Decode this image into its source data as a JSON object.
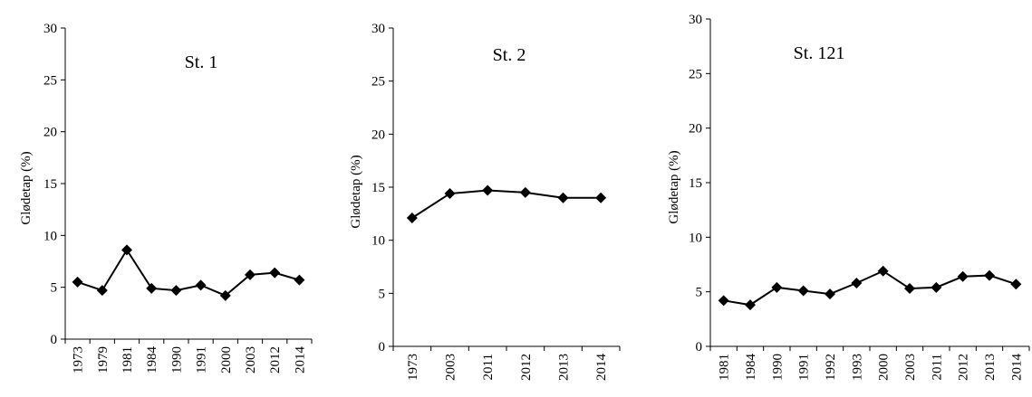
{
  "chart_data": [
    {
      "type": "line",
      "title": "St. 1",
      "xlabel": "",
      "ylabel": "Glødetap (%)",
      "ylim": [
        0,
        30
      ],
      "yticks": [
        0,
        5,
        10,
        15,
        20,
        25,
        30
      ],
      "grid": false,
      "categories": [
        "1973",
        "1979",
        "1981",
        "1984",
        "1990",
        "1991",
        "2000",
        "2003",
        "2012",
        "2014"
      ],
      "series": [
        {
          "values": [
            5.5,
            4.7,
            8.6,
            4.9,
            4.7,
            5.2,
            4.2,
            6.2,
            6.4,
            5.7
          ]
        }
      ]
    },
    {
      "type": "line",
      "title": "St. 2",
      "xlabel": "",
      "ylabel": "Glødetap (%)",
      "ylim": [
        0,
        30
      ],
      "yticks": [
        0,
        5,
        10,
        15,
        20,
        25,
        30
      ],
      "grid": false,
      "categories": [
        "1973",
        "2003",
        "2011",
        "2012",
        "2013",
        "2014"
      ],
      "series": [
        {
          "values": [
            12.1,
            14.4,
            14.7,
            14.5,
            14.0,
            14.0
          ]
        }
      ]
    },
    {
      "type": "line",
      "title": "St. 121",
      "xlabel": "",
      "ylabel": "Glødetap (%)",
      "ylim": [
        0,
        30
      ],
      "yticks": [
        0,
        5,
        10,
        15,
        20,
        25,
        30
      ],
      "grid": false,
      "categories": [
        "1981",
        "1984",
        "1990",
        "1991",
        "1992",
        "1993",
        "2000",
        "2003",
        "2011",
        "2012",
        "2013",
        "2014"
      ],
      "series": [
        {
          "values": [
            4.2,
            3.8,
            5.4,
            5.1,
            4.8,
            5.8,
            6.9,
            5.3,
            5.4,
            6.4,
            6.5,
            5.7
          ]
        }
      ]
    }
  ]
}
